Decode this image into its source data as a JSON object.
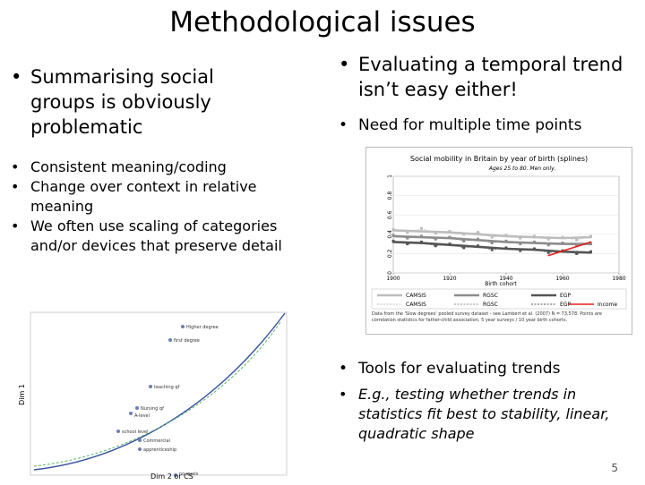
{
  "slide": {
    "title": "Methodological issues",
    "page_number": "5"
  },
  "left": {
    "main_bullet": "Summarising social groups is obviously problematic",
    "sub_bullets": [
      "Consistent meaning/coding",
      "Change over context in relative meaning",
      "We often use scaling of categories and/or devices that preserve detail"
    ],
    "figure": {
      "y_axis_label": "Dim 1",
      "x_axis_label": "Dim 2 or CS",
      "point_labels": [
        "Higher degree",
        "first degree",
        "teaching qf",
        "Nursing qf",
        "A-level",
        "school level",
        "Commercial",
        "apprenticeship",
        "no quals"
      ]
    }
  },
  "right": {
    "main_bullet": "Evaluating a temporal trend isn’t easy either!",
    "sub_bullet": "Need for multiple time points",
    "chart_title": "Social mobility in Britain by year of birth (splines)",
    "chart_subtitle": "Ages 25 to 80. Men only.",
    "x_axis_title": "Birth cohort",
    "legend": [
      "CAMSIS",
      "RGSC",
      "EGP",
      "CAMSIS",
      "RGSC",
      "EGP",
      "Income"
    ],
    "footnote": "Data from the 'Slow degrees' pooled survey dataset - see Lambert et al. (2007) N = 73,578. Points are correlation statistics for father-child association, 5 year surveys / 10 year birth cohorts.",
    "lower_bullet": "Tools for evaluating trends",
    "lower_sub_bullet": "E.g., testing whether trends in statistics fit best to stability, linear, quadratic shape"
  },
  "chart_data": {
    "type": "line",
    "title": "Social mobility in Britain by year of birth (splines)",
    "xlabel": "Birth cohort",
    "x_ticks": [
      1900,
      1920,
      1940,
      1960,
      1980
    ],
    "xlim": [
      1900,
      1980
    ],
    "y_ticks": [
      0,
      0.2,
      0.4,
      0.6,
      0.8,
      1
    ],
    "ylim": [
      0,
      1
    ],
    "series": [
      {
        "name": "CAMSIS",
        "style": "smooth",
        "color": "#bdbdbd",
        "x": [
          1900,
          1910,
          1920,
          1930,
          1940,
          1950,
          1960,
          1970
        ],
        "values": [
          0.44,
          0.43,
          0.42,
          0.4,
          0.38,
          0.37,
          0.36,
          0.37
        ]
      },
      {
        "name": "RGSC",
        "style": "smooth",
        "color": "#8c8c8c",
        "x": [
          1900,
          1910,
          1920,
          1930,
          1940,
          1950,
          1960,
          1970
        ],
        "values": [
          0.38,
          0.37,
          0.36,
          0.34,
          0.32,
          0.31,
          0.3,
          0.3
        ]
      },
      {
        "name": "EGP",
        "style": "smooth",
        "color": "#555555",
        "x": [
          1900,
          1910,
          1920,
          1930,
          1940,
          1950,
          1960,
          1970
        ],
        "values": [
          0.32,
          0.31,
          0.29,
          0.27,
          0.25,
          0.24,
          0.22,
          0.21
        ]
      },
      {
        "name": "CAMSIS",
        "style": "points",
        "color": "#bdbdbd",
        "x": [
          1900,
          1905,
          1910,
          1915,
          1920,
          1925,
          1930,
          1935,
          1940,
          1945,
          1950,
          1955,
          1960,
          1965,
          1970
        ],
        "values": [
          0.45,
          0.42,
          0.46,
          0.41,
          0.43,
          0.4,
          0.42,
          0.37,
          0.39,
          0.36,
          0.38,
          0.35,
          0.37,
          0.34,
          0.38
        ]
      },
      {
        "name": "RGSC",
        "style": "points",
        "color": "#8c8c8c",
        "x": [
          1900,
          1905,
          1910,
          1915,
          1920,
          1925,
          1930,
          1935,
          1940,
          1945,
          1950,
          1955,
          1960,
          1965,
          1970
        ],
        "values": [
          0.39,
          0.36,
          0.38,
          0.35,
          0.37,
          0.33,
          0.35,
          0.31,
          0.33,
          0.3,
          0.32,
          0.29,
          0.31,
          0.28,
          0.3
        ]
      },
      {
        "name": "EGP",
        "style": "points",
        "color": "#555555",
        "x": [
          1900,
          1905,
          1910,
          1915,
          1920,
          1925,
          1930,
          1935,
          1940,
          1945,
          1950,
          1955,
          1960,
          1965,
          1970
        ],
        "values": [
          0.33,
          0.3,
          0.32,
          0.28,
          0.3,
          0.26,
          0.28,
          0.24,
          0.26,
          0.23,
          0.25,
          0.21,
          0.23,
          0.2,
          0.22
        ]
      },
      {
        "name": "Income",
        "style": "line",
        "color": "#e0201b",
        "x": [
          1955,
          1970
        ],
        "values": [
          0.18,
          0.32
        ]
      }
    ]
  },
  "colors": {
    "text": "#000000",
    "income_line": "#e0201b",
    "figure_curve": "#334f9e",
    "figure_fit": "#58b46a"
  }
}
